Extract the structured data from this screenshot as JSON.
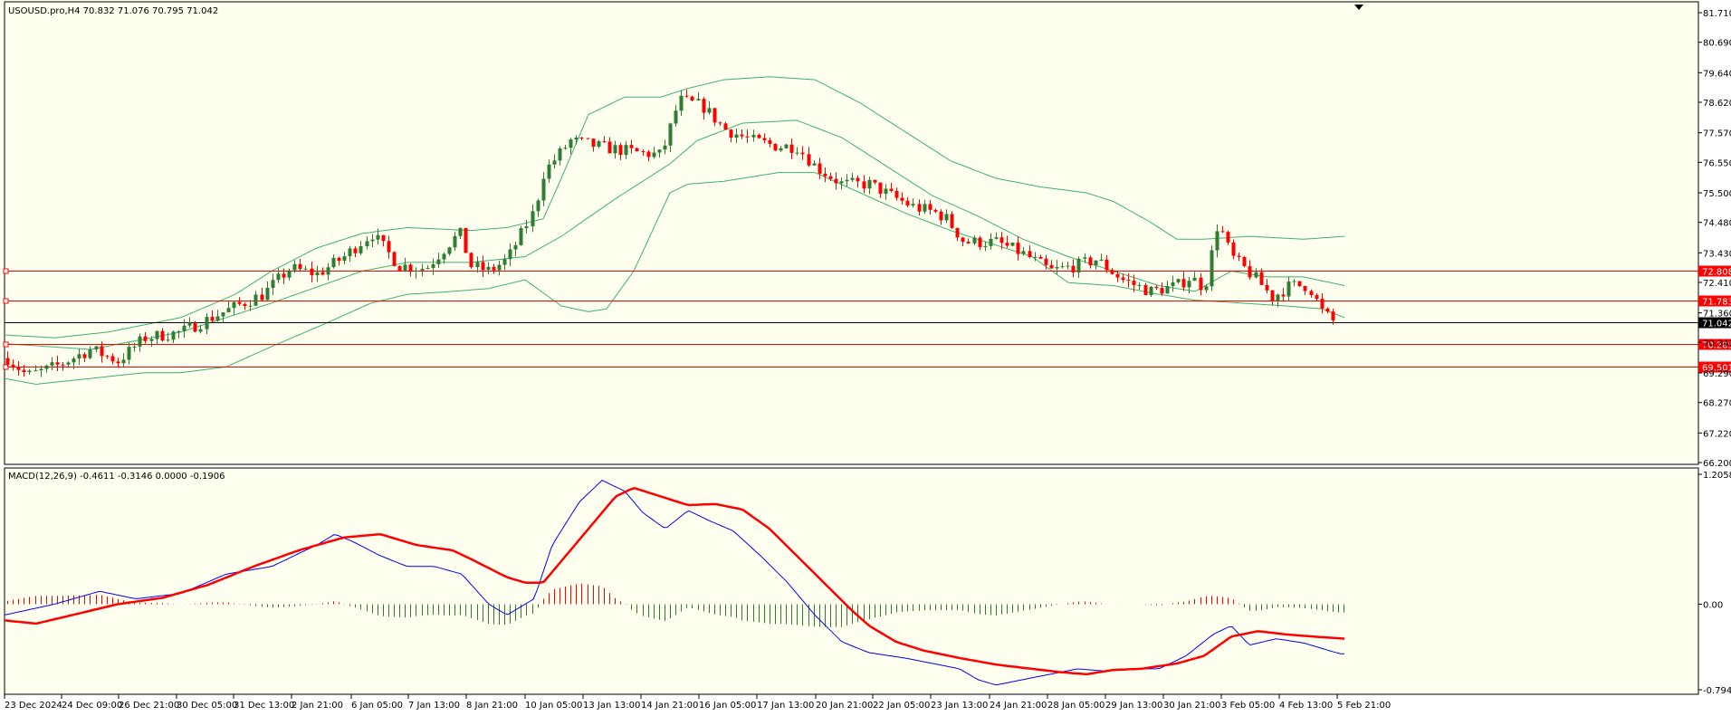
{
  "main": {
    "symbol_label": "USOUSD.pro,H4  70.832 71.076 70.795 71.042",
    "price_axis": [
      "81.710",
      "80.690",
      "79.640",
      "78.620",
      "77.570",
      "76.550",
      "75.500",
      "74.480",
      "73.430",
      "72.410",
      "71.360",
      "70.340",
      "69.290",
      "68.270",
      "67.220",
      "66.200"
    ],
    "hlines": [
      {
        "price": 72.808,
        "label": "72.808",
        "color": "#ff0000"
      },
      {
        "price": 71.783,
        "label": "71.783",
        "color": "#ff0000"
      },
      {
        "price": 70.285,
        "label": "70.285",
        "color": "#ff0000"
      },
      {
        "price": 69.501,
        "label": "69.501",
        "color": "#ff0000"
      }
    ],
    "current_price": {
      "price": 71.042,
      "label": "71.042",
      "color": "#000000"
    },
    "bull_color": "#2e7d32",
    "bear_color": "#ff0000",
    "band_color": "#3cb371",
    "background": "#fffff0"
  },
  "macd": {
    "label": "MACD(12,26,9) -0.4611 -0.3146 0.0000 -0.1906",
    "axis": [
      "1.2058",
      "0.00",
      "-0.7941"
    ],
    "macd_color": "#0000ff",
    "signal_color": "#ff0000"
  },
  "time_axis": [
    "23 Dec 2024",
    "24 Dec 09:00",
    "26 Dec 21:00",
    "30 Dec 05:00",
    "31 Dec 13:00",
    "2 Jan 21:00",
    "6 Jan 05:00",
    "7 Jan 13:00",
    "8 Jan 21:00",
    "10 Jan 05:00",
    "13 Jan 13:00",
    "14 Jan 21:00",
    "16 Jan 05:00",
    "17 Jan 13:00",
    "20 Jan 21:00",
    "22 Jan 05:00",
    "23 Jan 13:00",
    "24 Jan 21:00",
    "28 Jan 05:00",
    "29 Jan 13:00",
    "30 Jan 21:00",
    "3 Feb 05:00",
    "4 Feb 13:00",
    "5 Feb 21:00"
  ]
}
